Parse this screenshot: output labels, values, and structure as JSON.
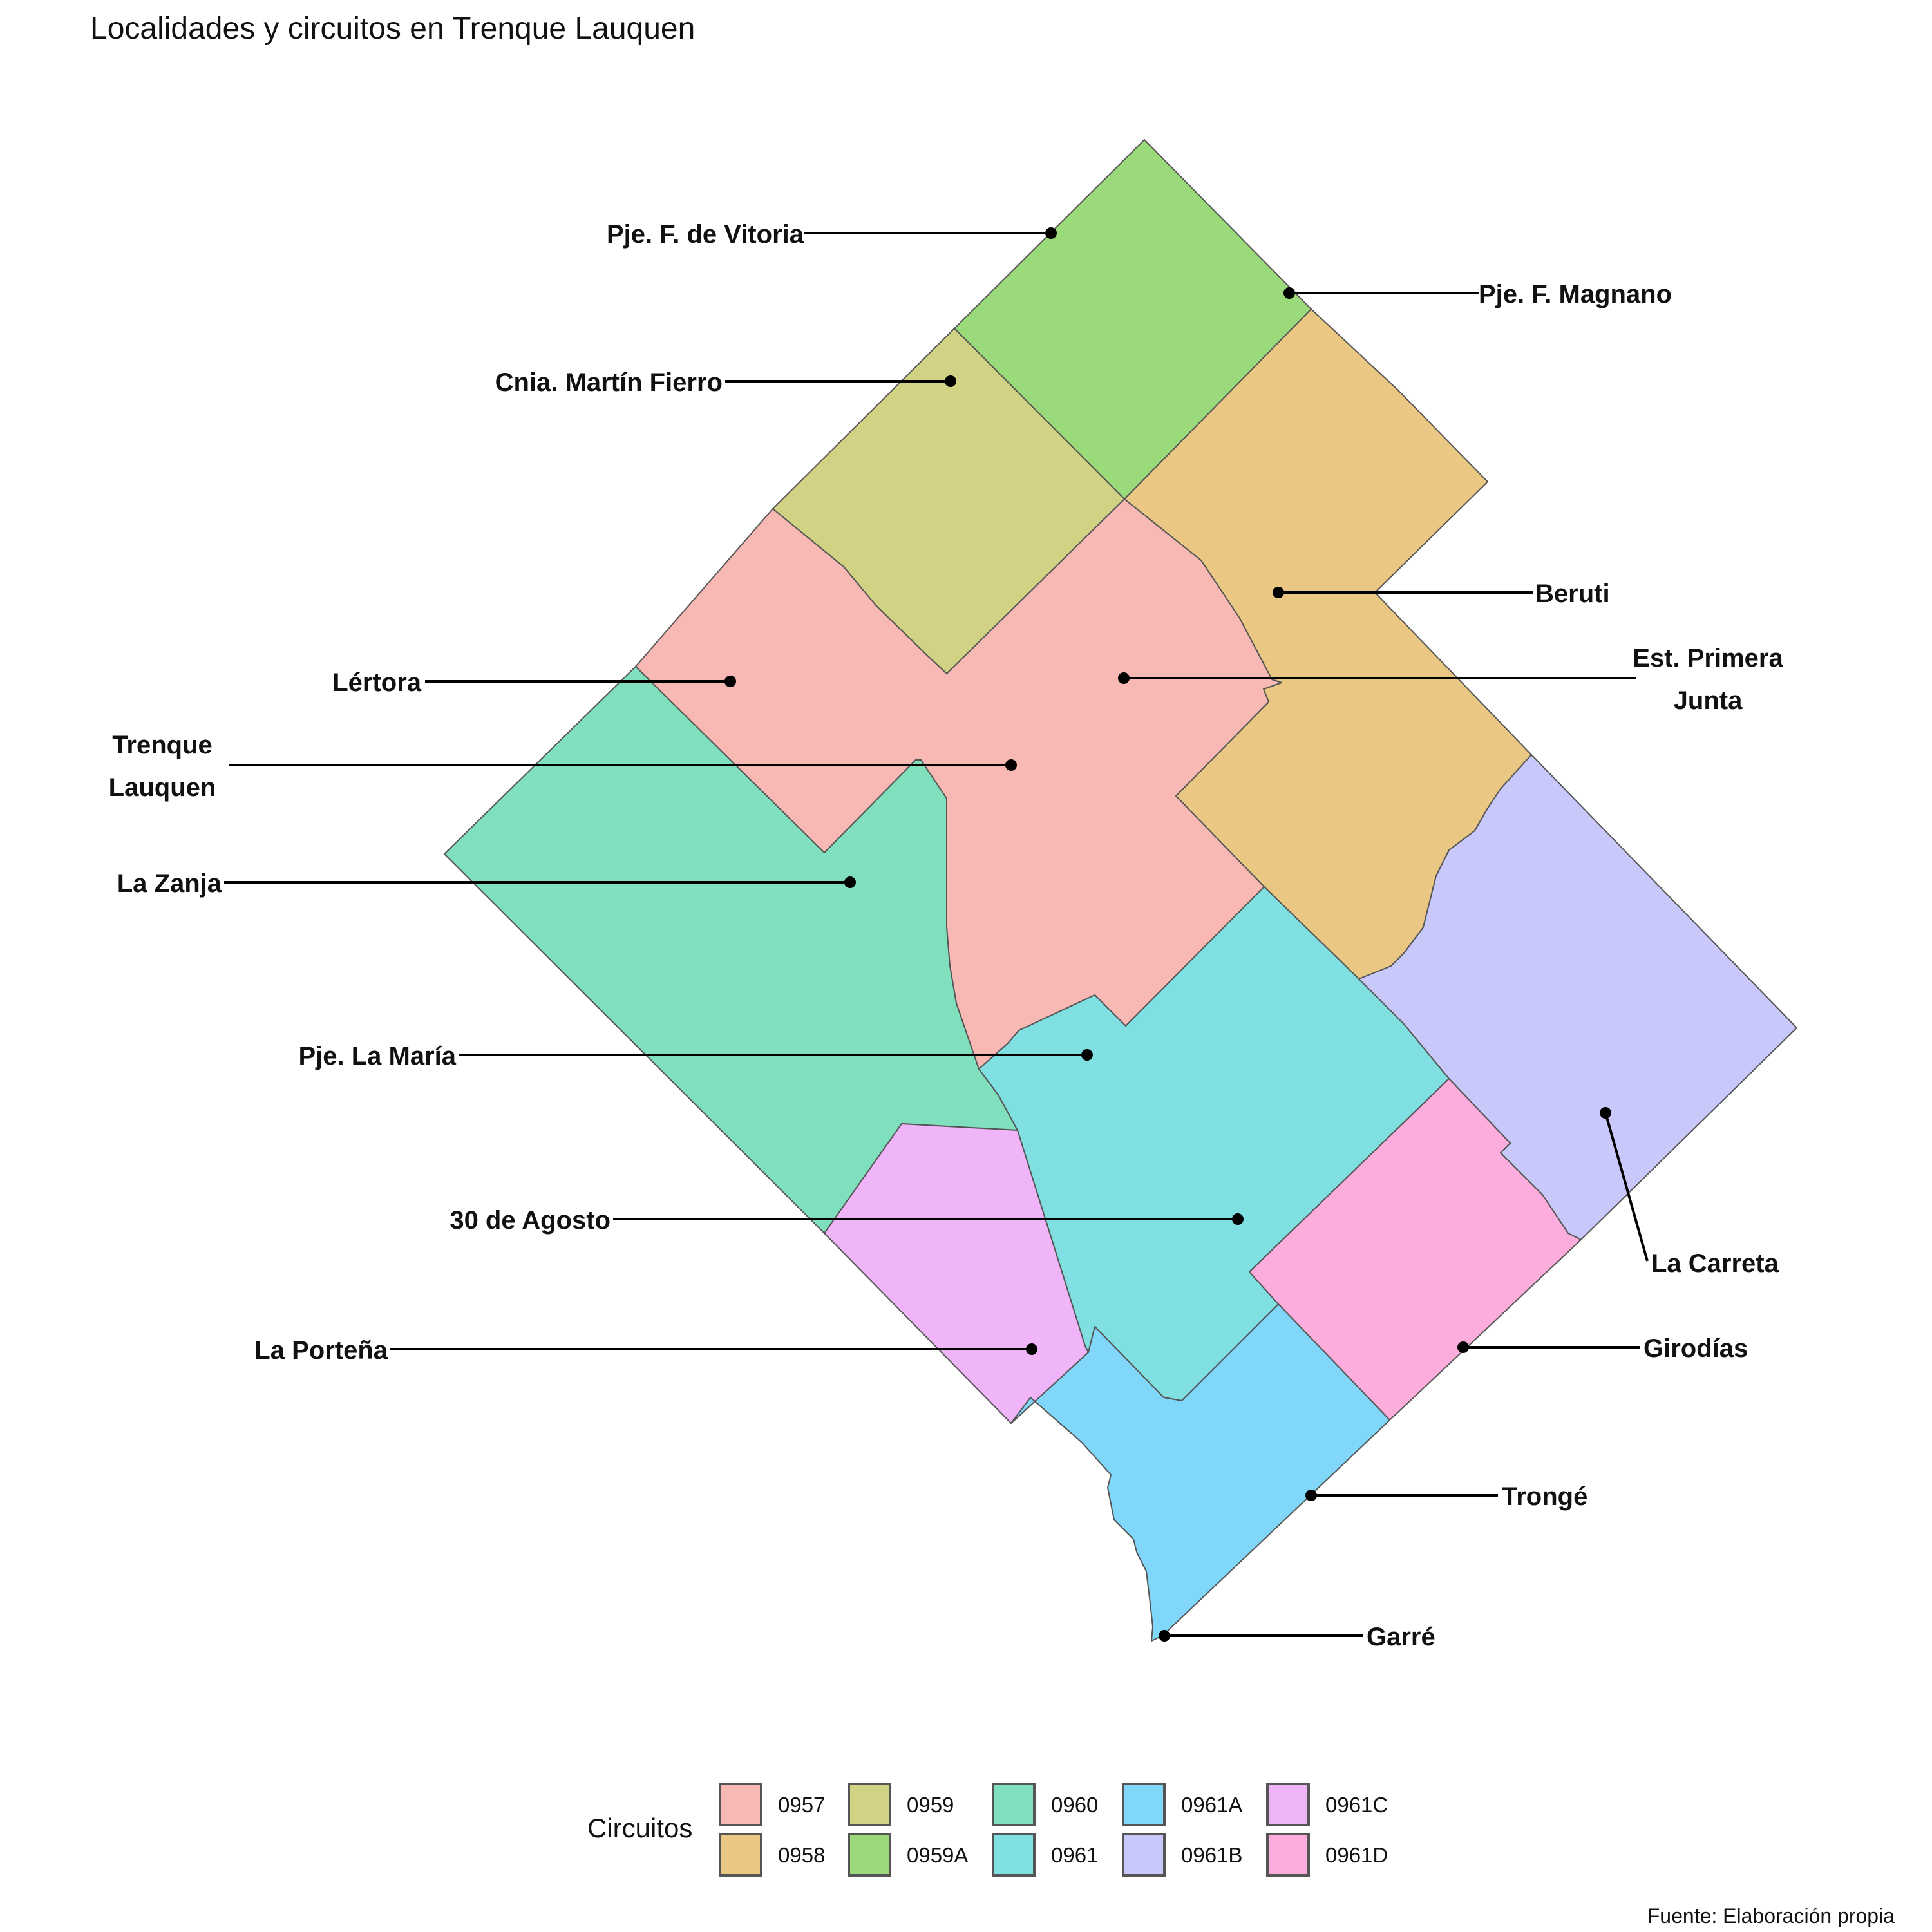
{
  "title": "Localidades y circuitos en Trenque Lauquen",
  "caption": "Fuente: Elaboración propia",
  "legend": {
    "title": "Circuitos",
    "items": [
      {
        "code": "0957",
        "color": "#F8B9B5"
      },
      {
        "code": "0958",
        "color": "#EAC883"
      },
      {
        "code": "0959",
        "color": "#D1D283"
      },
      {
        "code": "0959A",
        "color": "#9BDA7B"
      },
      {
        "code": "0960",
        "color": "#80DFBD"
      },
      {
        "code": "0961",
        "color": "#80DFE0"
      },
      {
        "code": "0961A",
        "color": "#80D7FA"
      },
      {
        "code": "0961B",
        "color": "#C9C8FA"
      },
      {
        "code": "0961C",
        "color": "#EFB5F8"
      },
      {
        "code": "0961D",
        "color": "#FCADDB"
      }
    ]
  },
  "localities": [
    {
      "name": "Pje. F. de Vitoria",
      "circuit": "0959A"
    },
    {
      "name": "Pje. F. Magnano",
      "circuit": "0959A"
    },
    {
      "name": "Cnia. Martín Fierro",
      "circuit": "0959"
    },
    {
      "name": "Beruti",
      "circuit": "0958"
    },
    {
      "name": "Est. Primera Junta",
      "circuit": "0957"
    },
    {
      "name": "Lértora",
      "circuit": "0957"
    },
    {
      "name": "Trenque Lauquen",
      "circuit": "0957"
    },
    {
      "name": "La Zanja",
      "circuit": "0960"
    },
    {
      "name": "Pje. La María",
      "circuit": "0961"
    },
    {
      "name": "30 de Agosto",
      "circuit": "0961"
    },
    {
      "name": "La Carreta",
      "circuit": "0961B"
    },
    {
      "name": "Girodías",
      "circuit": "0961D"
    },
    {
      "name": "La Porteña",
      "circuit": "0961C"
    },
    {
      "name": "Trongé",
      "circuit": "0961A"
    },
    {
      "name": "Garré",
      "circuit": "0961A"
    }
  ]
}
